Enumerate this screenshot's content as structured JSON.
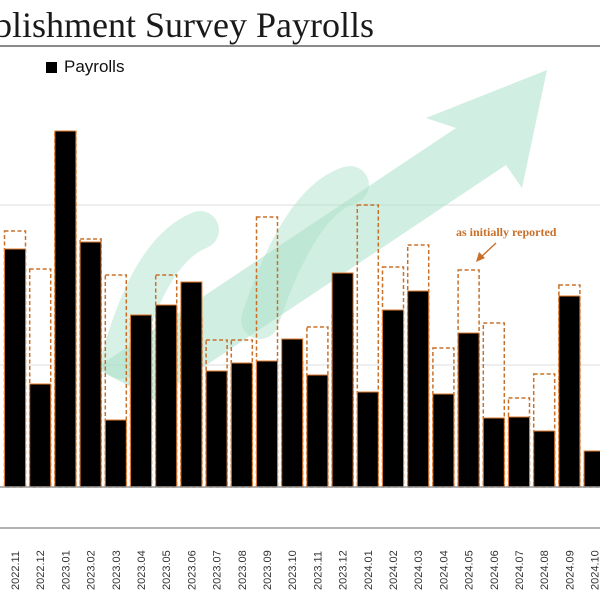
{
  "chart_data": {
    "type": "bar",
    "title": "Establishment Survey Payrolls",
    "title_visible": "blishment Survey Payrolls",
    "legend": [
      "Payrolls"
    ],
    "legend_position": "top-left",
    "annotation": "as initially reported",
    "grid": true,
    "categories": [
      "2022.11",
      "2022.12",
      "2023.01",
      "2023.02",
      "2023.03",
      "2023.04",
      "2023.05",
      "2023.06",
      "2023.07",
      "2023.08",
      "2023.09",
      "2023.10",
      "2023.11",
      "2023.12",
      "2024.01",
      "2024.02",
      "2024.03",
      "2024.04",
      "2024.05",
      "2024.06",
      "2024.07",
      "2024.08",
      "2024.09",
      "2024.10"
    ],
    "series": [
      {
        "name": "Payrolls",
        "values": [
          238,
          103,
          356,
          245,
          67,
          172,
          182,
          205,
          116,
          124,
          126,
          148,
          112,
          214,
          95,
          177,
          196,
          93,
          154,
          69,
          70,
          56,
          191,
          36
        ]
      },
      {
        "name": "as initially reported",
        "values": [
          256,
          218,
          355,
          248,
          212,
          168,
          212,
          168,
          147,
          147,
          270,
          125,
          160,
          173,
          282,
          220,
          242,
          139,
          217,
          164,
          89,
          113,
          202,
          12
        ]
      }
    ],
    "ylim": [
      0,
      400
    ]
  },
  "colors": {
    "bar": "#000000",
    "bar_outline": "#e07a2e",
    "reported_outline": "#c8702a",
    "annotation": "#c8702a",
    "arrow": "#a9e0c8",
    "gridline": "#d9d9d9",
    "axis": "#9a9a9a"
  }
}
